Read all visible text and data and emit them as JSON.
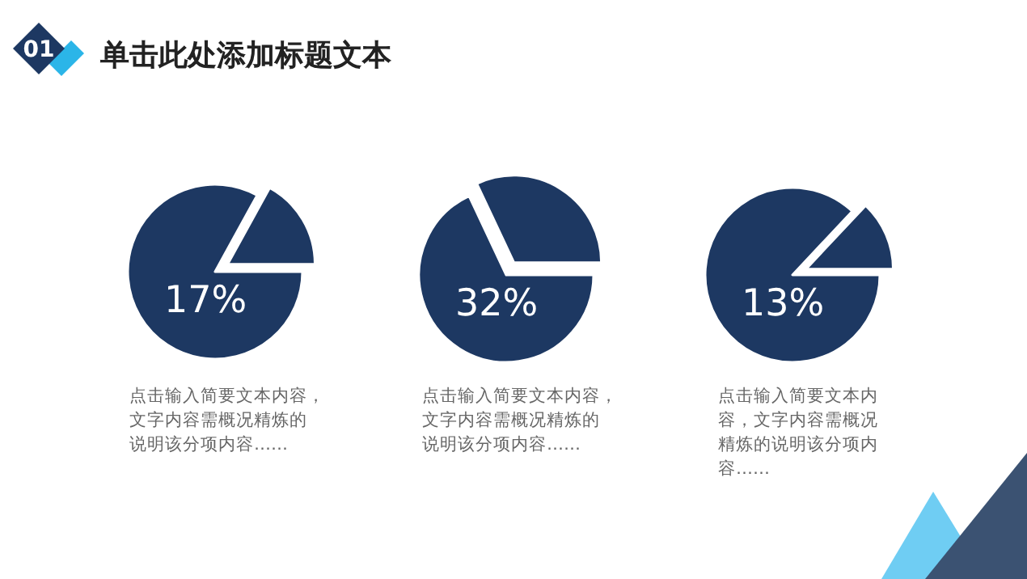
{
  "chart_data": [
    {
      "type": "pie",
      "title": "单击此处添加标题文本",
      "subtitle": "01",
      "categories": [
        null,
        null
      ],
      "values": [
        17,
        83
      ],
      "colors": [
        "#1d3862",
        "#1d3862"
      ],
      "annotations": [
        "17%",
        "点击输入简要文本内容，文字内容需概况精炼的说明该分项内容……"
      ]
    },
    {
      "type": "pie",
      "categories": [
        null,
        null
      ],
      "values": [
        32,
        68
      ],
      "colors": [
        "#1d3862",
        "#1d3862"
      ],
      "annotations": [
        "32%",
        "点击输入简要文本内容，文字内容需概况精炼的说明该分项内容……"
      ]
    },
    {
      "type": "pie",
      "categories": [
        null,
        null
      ],
      "values": [
        13,
        87
      ],
      "colors": [
        "#1d3862",
        "#1d3862"
      ],
      "annotations": [
        "13%",
        "点击输入简要文本内容，文字内容需概况精炼的说明该分项内容……"
      ]
    }
  ]
}
